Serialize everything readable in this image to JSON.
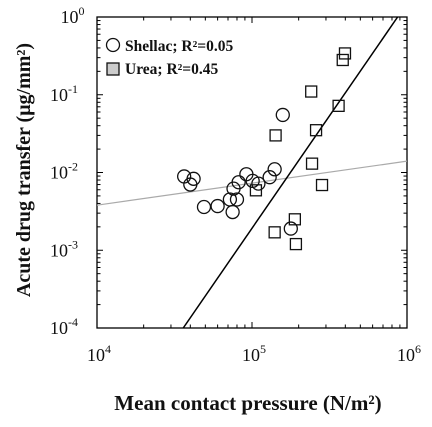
{
  "chart_data": {
    "type": "scatter",
    "xlabel": "Mean contact pressure (N/m²)",
    "ylabel": "Acute drug transfer (μg/mm²)",
    "xscale": "log",
    "yscale": "log",
    "xlim": [
      10000,
      1000000
    ],
    "ylim": [
      0.0001,
      1
    ],
    "x_ticks": [
      {
        "base": "10",
        "exp": "4",
        "value": 10000
      },
      {
        "base": "10",
        "exp": "5",
        "value": 100000
      },
      {
        "base": "10",
        "exp": "6",
        "value": 1000000
      }
    ],
    "y_ticks": [
      {
        "base": "10",
        "exp": "0",
        "value": 1
      },
      {
        "base": "10",
        "exp": "-1",
        "value": 0.1
      },
      {
        "base": "10",
        "exp": "-2",
        "value": 0.01
      },
      {
        "base": "10",
        "exp": "-3",
        "value": 0.001
      },
      {
        "base": "10",
        "exp": "-4",
        "value": 0.0001
      }
    ],
    "legend_position": "top-left",
    "grid": false,
    "series": [
      {
        "name": "Shellac; R²=0.05",
        "marker": "circle",
        "fit_color": "#aaaaaa",
        "fit_line": [
          [
            10000,
            0.0038
          ],
          [
            1000000,
            0.014
          ]
        ],
        "points": [
          [
            36500,
            0.0089
          ],
          [
            40000,
            0.007
          ],
          [
            42000,
            0.0083
          ],
          [
            49000,
            0.0036
          ],
          [
            60000,
            0.0037
          ],
          [
            72000,
            0.0045
          ],
          [
            75000,
            0.0031
          ],
          [
            76000,
            0.0062
          ],
          [
            80000,
            0.0045
          ],
          [
            82000,
            0.0075
          ],
          [
            92000,
            0.0095
          ],
          [
            101000,
            0.0078
          ],
          [
            110000,
            0.0072
          ],
          [
            130000,
            0.0087
          ],
          [
            140000,
            0.011
          ],
          [
            158000,
            0.055
          ],
          [
            178000,
            0.0019
          ]
        ]
      },
      {
        "name": "Urea; R²=0.45",
        "marker": "square",
        "fit_color": "#000000",
        "fit_line": [
          [
            36000,
            0.0001
          ],
          [
            870000,
            1
          ]
        ],
        "points": [
          [
            106000,
            0.0059
          ],
          [
            140000,
            0.0017
          ],
          [
            142000,
            0.03
          ],
          [
            189000,
            0.0025
          ],
          [
            192000,
            0.0012
          ],
          [
            241000,
            0.11
          ],
          [
            244000,
            0.013
          ],
          [
            259000,
            0.035
          ],
          [
            283000,
            0.0069
          ],
          [
            362000,
            0.072
          ],
          [
            385000,
            0.28
          ],
          [
            398000,
            0.34
          ]
        ]
      }
    ]
  }
}
